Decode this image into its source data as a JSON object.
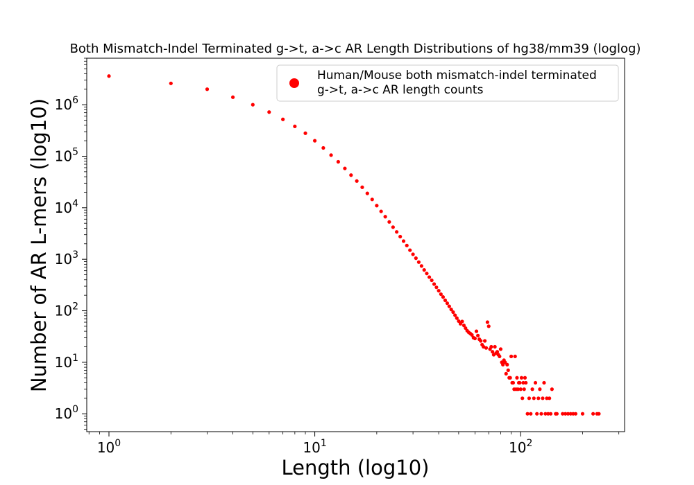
{
  "chart_data": {
    "type": "scatter",
    "title": "Both Mismatch-Indel Terminated g->t, a->c AR Length Distributions of hg38/mm39 (loglog)",
    "xlabel": "Length (log10)",
    "ylabel": "Number of AR L-mers (log10)",
    "x_scale": "log",
    "y_scale": "log",
    "xlim": [
      0.78,
      320
    ],
    "ylim": [
      0.45,
      8000000
    ],
    "x_ticks": [
      {
        "base": "10",
        "exp": "0",
        "value": 1
      },
      {
        "base": "10",
        "exp": "1",
        "value": 10
      },
      {
        "base": "10",
        "exp": "2",
        "value": 100
      }
    ],
    "y_ticks": [
      {
        "base": "10",
        "exp": "0",
        "value": 1
      },
      {
        "base": "10",
        "exp": "1",
        "value": 10
      },
      {
        "base": "10",
        "exp": "2",
        "value": 100
      },
      {
        "base": "10",
        "exp": "3",
        "value": 1000
      },
      {
        "base": "10",
        "exp": "4",
        "value": 10000
      },
      {
        "base": "10",
        "exp": "5",
        "value": 100000
      },
      {
        "base": "10",
        "exp": "6",
        "value": 1000000
      }
    ],
    "grid": false,
    "legend_position": "top-right",
    "marker_color": "#ff0000",
    "series": [
      {
        "name": "Human/Mouse both mismatch-indel terminated\n g->t, a->c AR length counts",
        "points": [
          [
            1,
            3600000
          ],
          [
            2,
            2600000
          ],
          [
            3,
            2000000
          ],
          [
            4,
            1400000
          ],
          [
            5,
            1000000
          ],
          [
            6,
            720000
          ],
          [
            7,
            520000
          ],
          [
            8,
            380000
          ],
          [
            9,
            280000
          ],
          [
            10,
            200000
          ],
          [
            11,
            145000
          ],
          [
            12,
            105000
          ],
          [
            13,
            78000
          ],
          [
            14,
            58000
          ],
          [
            15,
            43000
          ],
          [
            16,
            33000
          ],
          [
            17,
            25000
          ],
          [
            18,
            19000
          ],
          [
            19,
            14500
          ],
          [
            20,
            11000
          ],
          [
            21,
            8500
          ],
          [
            22,
            6700
          ],
          [
            23,
            5300
          ],
          [
            24,
            4200
          ],
          [
            25,
            3400
          ],
          [
            26,
            2750
          ],
          [
            27,
            2250
          ],
          [
            28,
            1850
          ],
          [
            29,
            1500
          ],
          [
            30,
            1250
          ],
          [
            31,
            1050
          ],
          [
            32,
            880
          ],
          [
            33,
            740
          ],
          [
            34,
            620
          ],
          [
            35,
            530
          ],
          [
            36,
            450
          ],
          [
            37,
            390
          ],
          [
            38,
            330
          ],
          [
            39,
            285
          ],
          [
            40,
            245
          ],
          [
            41,
            210
          ],
          [
            42,
            185
          ],
          [
            43,
            160
          ],
          [
            44,
            140
          ],
          [
            45,
            122
          ],
          [
            46,
            106
          ],
          [
            47,
            94
          ],
          [
            48,
            82
          ],
          [
            49,
            72
          ],
          [
            50,
            63
          ],
          [
            51,
            56
          ],
          [
            52,
            62
          ],
          [
            53,
            52
          ],
          [
            54,
            46
          ],
          [
            55,
            41
          ],
          [
            56,
            38
          ],
          [
            57,
            36
          ],
          [
            58,
            34
          ],
          [
            59,
            30
          ],
          [
            60,
            29
          ],
          [
            61,
            40
          ],
          [
            62,
            33
          ],
          [
            63,
            28
          ],
          [
            64,
            26
          ],
          [
            65,
            22
          ],
          [
            66,
            20
          ],
          [
            67,
            26
          ],
          [
            68,
            19
          ],
          [
            69,
            60
          ],
          [
            70,
            50
          ],
          [
            71,
            18
          ],
          [
            72,
            20
          ],
          [
            73,
            16
          ],
          [
            74,
            14
          ],
          [
            75,
            20
          ],
          [
            76,
            15
          ],
          [
            77,
            16
          ],
          [
            78,
            14
          ],
          [
            79,
            13
          ],
          [
            80,
            18
          ],
          [
            81,
            10
          ],
          [
            82,
            9
          ],
          [
            83,
            11
          ],
          [
            84,
            10
          ],
          [
            85,
            6
          ],
          [
            86,
            9
          ],
          [
            87,
            7
          ],
          [
            88,
            5
          ],
          [
            89,
            5
          ],
          [
            90,
            13
          ],
          [
            91,
            4
          ],
          [
            92,
            4
          ],
          [
            93,
            3
          ],
          [
            94,
            13
          ],
          [
            95,
            3
          ],
          [
            96,
            5
          ],
          [
            97,
            3
          ],
          [
            98,
            4
          ],
          [
            99,
            4
          ],
          [
            100,
            3
          ],
          [
            101,
            5
          ],
          [
            102,
            2
          ],
          [
            103,
            4
          ],
          [
            104,
            3
          ],
          [
            105,
            5
          ],
          [
            106,
            4
          ],
          [
            108,
            1
          ],
          [
            110,
            2
          ],
          [
            112,
            1
          ],
          [
            114,
            3
          ],
          [
            116,
            2
          ],
          [
            118,
            4
          ],
          [
            120,
            1
          ],
          [
            122,
            2
          ],
          [
            124,
            3
          ],
          [
            126,
            1
          ],
          [
            128,
            2
          ],
          [
            130,
            4
          ],
          [
            132,
            1
          ],
          [
            134,
            2
          ],
          [
            136,
            1
          ],
          [
            138,
            2
          ],
          [
            140,
            1
          ],
          [
            142,
            3
          ],
          [
            148,
            1
          ],
          [
            150,
            1
          ],
          [
            160,
            1
          ],
          [
            165,
            1
          ],
          [
            170,
            1
          ],
          [
            175,
            1
          ],
          [
            180,
            1
          ],
          [
            185,
            1
          ],
          [
            200,
            1
          ],
          [
            225,
            1
          ],
          [
            235,
            1
          ],
          [
            240,
            1
          ]
        ]
      }
    ]
  }
}
